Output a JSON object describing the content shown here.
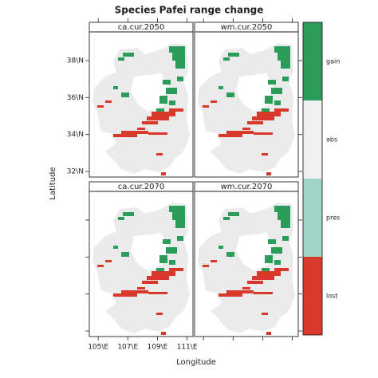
{
  "chart_data": {
    "type": "raster-map",
    "title": "Species Pafei range change",
    "x_label": "Longitude",
    "y_label": "Latitude",
    "panels": [
      "ca.cur.2050",
      "wm.cur.2050",
      "ca.cur.2070",
      "wm.cur.2070"
    ],
    "xlim": [
      104.4,
      111.4
    ],
    "ylim": [
      31.7,
      39.55
    ],
    "xticks": [
      {
        "value": 105,
        "label": "105\\E"
      },
      {
        "value": 107,
        "label": "107\\E"
      },
      {
        "value": 109,
        "label": "109\\E"
      },
      {
        "value": 111,
        "label": "111\\E"
      }
    ],
    "yticks": [
      {
        "value": 32,
        "label": "32\\N"
      },
      {
        "value": 34,
        "label": "34\\N"
      },
      {
        "value": 36,
        "label": "36\\N"
      },
      {
        "value": 38,
        "label": "38\\N"
      }
    ],
    "legend": [
      {
        "label": "gain",
        "color": "#2b9c5a"
      },
      {
        "label": "abs",
        "color": "#f0f0f0"
      },
      {
        "label": "pres",
        "color": "#9fd6c8"
      },
      {
        "label": "lost",
        "color": "#d8392a"
      }
    ]
  }
}
